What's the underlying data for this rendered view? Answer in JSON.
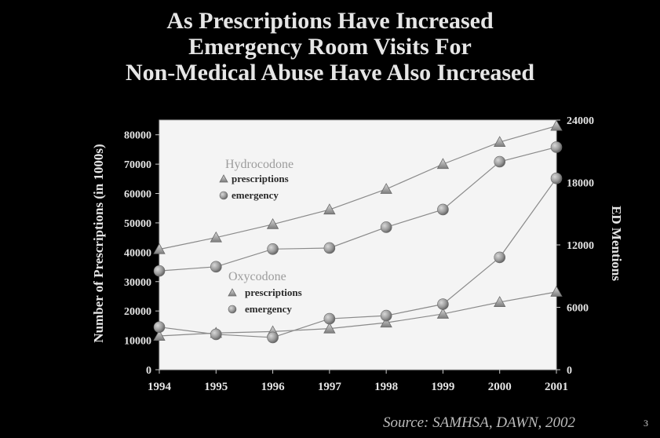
{
  "slide": {
    "title_lines": [
      "As Prescriptions Have Increased",
      "Emergency Room Visits For",
      "Non-Medical Abuse Have Also Increased"
    ],
    "source": "Source: SAMHSA, DAWN, 2002",
    "slide_number": "3"
  },
  "chart_data": {
    "type": "line",
    "x": [
      "1994",
      "1995",
      "1996",
      "1997",
      "1998",
      "1999",
      "2000",
      "2001"
    ],
    "ylabel_left": "Number of Prescriptions (in 1000s)",
    "ylabel_right": "ED Mentions",
    "ylim_left": [
      0,
      85000
    ],
    "ylim_right": [
      0,
      24000
    ],
    "yticks_left": [
      "0",
      "10000",
      "20000",
      "30000",
      "40000",
      "50000",
      "60000",
      "70000",
      "80000"
    ],
    "yticks_right": [
      "0",
      "6000",
      "12000",
      "18000",
      "24000"
    ],
    "legend_groups": [
      {
        "title": "Hydrocodone",
        "entries": [
          "prescriptions",
          "emergency"
        ]
      },
      {
        "title": "Oxycodone",
        "entries": [
          "prescriptions",
          "emergency"
        ]
      }
    ],
    "series": [
      {
        "group": "Hydrocodone",
        "label": "prescriptions",
        "axis": "left",
        "marker": "triangle",
        "values": [
          41000,
          45000,
          49500,
          54500,
          61500,
          70000,
          77500,
          83000
        ]
      },
      {
        "group": "Hydrocodone",
        "label": "emergency",
        "axis": "right",
        "marker": "circle",
        "values": [
          9500,
          9900,
          11600,
          11700,
          13700,
          15400,
          20000,
          21400
        ]
      },
      {
        "group": "Oxycodone",
        "label": "prescriptions",
        "axis": "left",
        "marker": "triangle",
        "values": [
          11500,
          12500,
          13000,
          14000,
          16000,
          19000,
          23000,
          26500
        ]
      },
      {
        "group": "Oxycodone",
        "label": "emergency",
        "axis": "right",
        "marker": "circle",
        "values": [
          4100,
          3400,
          3100,
          4900,
          5200,
          6300,
          10800,
          18400
        ]
      }
    ]
  }
}
